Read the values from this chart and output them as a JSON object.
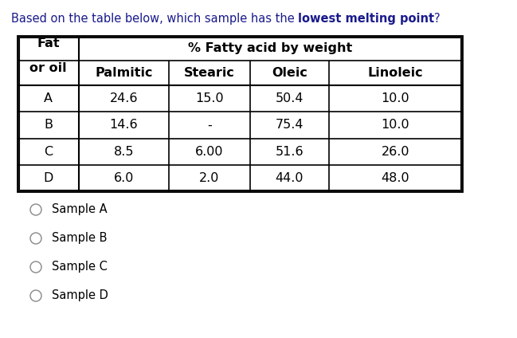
{
  "question_normal": "Based on the table below, which sample has the ",
  "question_bold": "lowest melting point",
  "question_end": "?",
  "table": {
    "top_header": "% Fatty acid by weight",
    "col0_header": "Fat\nor oil",
    "sub_headers": [
      "Palmitic",
      "Stearic",
      "Oleic",
      "Linoleic"
    ],
    "rows": [
      [
        "A",
        "24.6",
        "15.0",
        "50.4",
        "10.0"
      ],
      [
        "B",
        "14.6",
        "-",
        "75.4",
        "10.0"
      ],
      [
        "C",
        "8.5",
        "6.00",
        "51.6",
        "26.0"
      ],
      [
        "D",
        "6.0",
        "2.0",
        "44.0",
        "48.0"
      ]
    ]
  },
  "options": [
    "Sample A",
    "Sample B",
    "Sample C",
    "Sample D"
  ],
  "bg_color": "#ffffff",
  "text_color": "#000000",
  "question_color": "#1a1a8c",
  "border_color": "#000000",
  "table_font_size": 11.5,
  "question_font_size": 10.5,
  "option_font_size": 10.5
}
